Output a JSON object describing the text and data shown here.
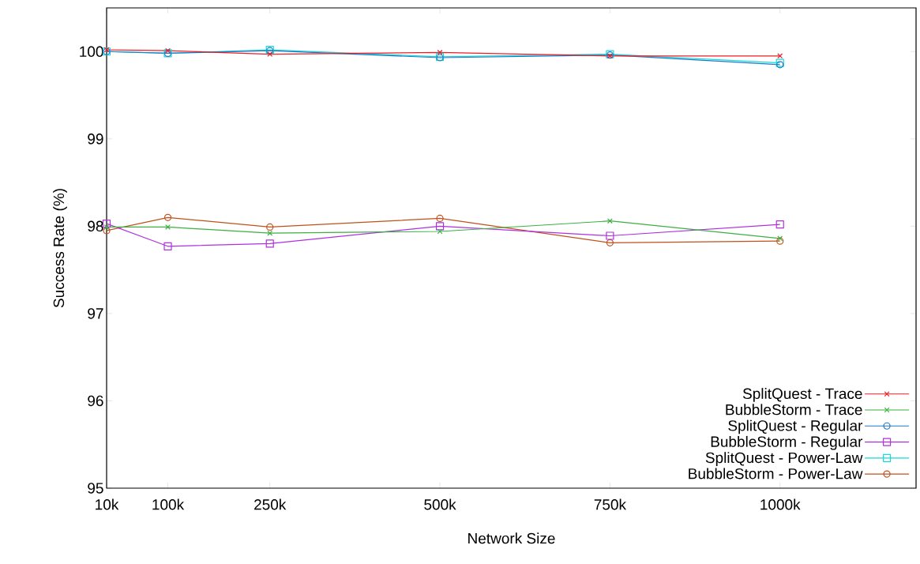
{
  "chart_data": {
    "type": "line",
    "xlabel": "Network Size",
    "ylabel": "Success Rate (%)",
    "x": [
      10,
      100,
      250,
      500,
      750,
      1000
    ],
    "xlim": [
      10,
      1200
    ],
    "ylim": [
      95,
      100.5
    ],
    "xticks": [
      {
        "value": 10,
        "label": "10k"
      },
      {
        "value": 100,
        "label": "100k"
      },
      {
        "value": 250,
        "label": "250k"
      },
      {
        "value": 500,
        "label": "500k"
      },
      {
        "value": 750,
        "label": "750k"
      },
      {
        "value": 1000,
        "label": "1000k"
      }
    ],
    "yticks": [
      95,
      96,
      97,
      98,
      99,
      100
    ],
    "grid": false,
    "legend": "bottom right",
    "series": [
      {
        "name": "SplitQuest - Trace",
        "color": "#ee1c24",
        "marker": "cross",
        "values": [
          100.02,
          100.01,
          99.97,
          99.99,
          99.95,
          99.95
        ]
      },
      {
        "name": "BubbleStorm - Trace",
        "color": "#3cb043",
        "marker": "cross",
        "values": [
          97.99,
          97.99,
          97.92,
          97.94,
          98.06,
          97.86
        ]
      },
      {
        "name": "SplitQuest - Regular",
        "color": "#1f78c8",
        "marker": "circle",
        "values": [
          100.0,
          99.98,
          100.01,
          99.93,
          99.96,
          99.85
        ]
      },
      {
        "name": "BubbleStorm - Regular",
        "color": "#b030e0",
        "marker": "square",
        "values": [
          98.03,
          97.77,
          97.8,
          98.0,
          97.89,
          98.02
        ]
      },
      {
        "name": "SplitQuest - Power-Law",
        "color": "#18d8d8",
        "marker": "square",
        "values": [
          100.0,
          99.98,
          100.02,
          99.94,
          99.97,
          99.87
        ]
      },
      {
        "name": "BubbleStorm - Power-Law",
        "color": "#c0501c",
        "marker": "circle",
        "values": [
          97.95,
          98.1,
          97.99,
          98.09,
          97.81,
          97.83
        ]
      }
    ]
  }
}
